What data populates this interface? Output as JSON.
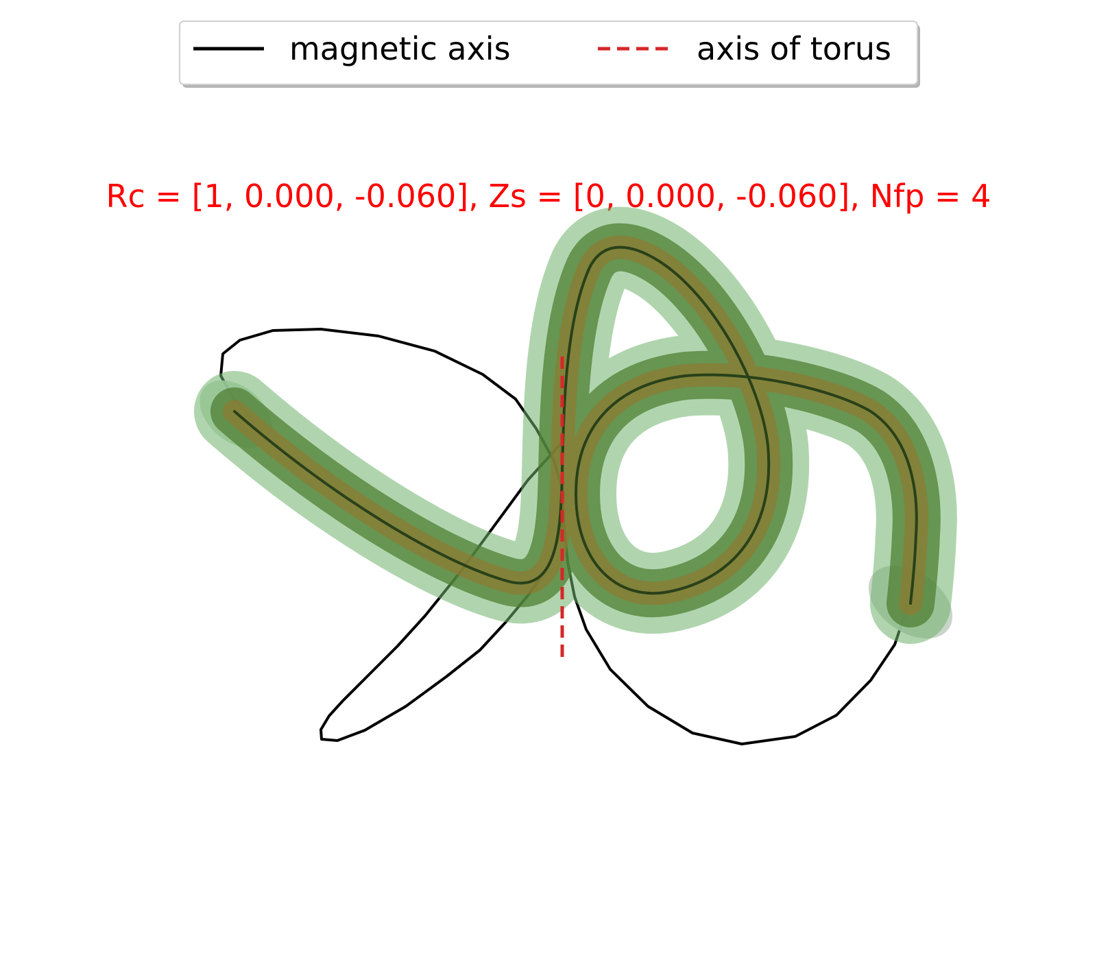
{
  "title": "Rc = [1, 0.000, -0.060], Zs = [0, 0.000, -0.060], Nfp = 4",
  "legend": {
    "placement": "top-center",
    "entries": [
      {
        "label": "magnetic axis",
        "style": "solid",
        "color": "#000000"
      },
      {
        "label": "axis of torus",
        "style": "dashed",
        "color": "#d62728"
      }
    ]
  },
  "colors": {
    "title": "#ff0000",
    "tube_outer": "#4caf50",
    "tube_mid": "#3f7f2a",
    "tube_core": "#9a7a2a",
    "magnetic_axis": "#000000",
    "torus_axis": "#d62728"
  }
}
